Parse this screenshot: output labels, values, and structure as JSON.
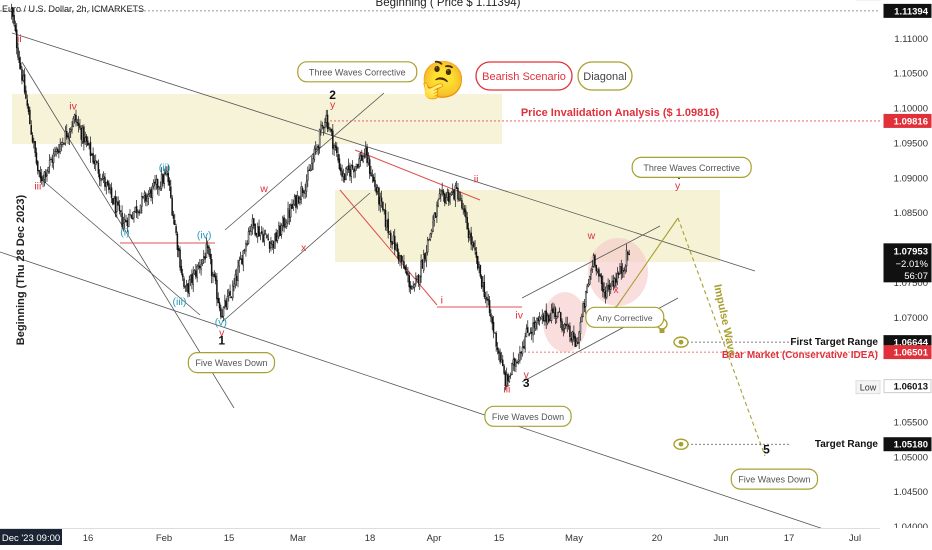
{
  "header": {
    "symbol_line": "Euro / U.S. Dollar, 2h, ICMARKETS"
  },
  "chart_data": {
    "type": "candlestick",
    "title": "Euro / U.S. Dollar, 2h, ICMARKETS",
    "y_axis": {
      "side": "right",
      "ylim": [
        1.0395,
        1.1155
      ],
      "ticks": [
        "1.11000",
        "1.10500",
        "1.10000",
        "1.09500",
        "1.09000",
        "1.08500",
        "1.08000",
        "1.07500",
        "1.07000",
        "1.06500",
        "1.06000",
        "1.05500",
        "1.05000",
        "1.04500",
        "1.04000"
      ],
      "price_badges": [
        {
          "label": "High",
          "value": 1.11394,
          "text": "1.11394"
        },
        {
          "value": 1.09816,
          "text": "1.09816"
        },
        {
          "value": 1.07953,
          "text": "1.07953",
          "change": "−2.01%",
          "countdown": "56:07"
        },
        {
          "value": 1.06644,
          "text": "1.06644"
        },
        {
          "value": 1.06501,
          "text": "1.06501"
        },
        {
          "label": "Low",
          "value": 1.06013,
          "text": "1.06013"
        },
        {
          "value": 1.0518,
          "text": "1.05180"
        }
      ]
    },
    "x_axis": {
      "labels": [
        "Dec '23  09:00",
        "16",
        "Feb",
        "15",
        "Mar",
        "18",
        "Apr",
        "15",
        "May",
        "20",
        "Jun",
        "17",
        "Jul"
      ]
    },
    "series": [
      {
        "type": "price",
        "anchors": [
          [
            0.013,
            1.1139
          ],
          [
            0.02,
            1.1085
          ],
          [
            0.045,
            1.0895
          ],
          [
            0.085,
            1.0985
          ],
          [
            0.14,
            1.0835
          ],
          [
            0.19,
            1.0905
          ],
          [
            0.21,
            1.0735
          ],
          [
            0.235,
            1.0795
          ],
          [
            0.252,
            1.0705
          ],
          [
            0.265,
            1.074
          ],
          [
            0.285,
            1.0835
          ],
          [
            0.31,
            1.0805
          ],
          [
            0.35,
            1.09
          ],
          [
            0.37,
            1.099
          ],
          [
            0.39,
            1.09
          ],
          [
            0.415,
            1.0935
          ],
          [
            0.44,
            1.083
          ],
          [
            0.47,
            1.0735
          ],
          [
            0.5,
            1.087
          ],
          [
            0.52,
            1.088
          ],
          [
            0.55,
            1.074
          ],
          [
            0.575,
            1.0605
          ],
          [
            0.6,
            1.068
          ],
          [
            0.63,
            1.071
          ],
          [
            0.655,
            1.066
          ],
          [
            0.675,
            1.079
          ],
          [
            0.685,
            1.0735
          ],
          [
            0.705,
            1.0765
          ],
          [
            0.715,
            1.0795
          ]
        ],
        "candle_count": 470
      }
    ],
    "horizontal_levels": [
      {
        "value": 1.11394,
        "label": "Beginning ( Price $ 1.11394)"
      },
      {
        "value": 1.09816,
        "label": "Price Invalidation Analysis ($ 1.09816)"
      },
      {
        "value": 1.06644,
        "label": "First Target Range"
      },
      {
        "value": 1.06501,
        "label": "Bear Market (Conservative IDEA)"
      },
      {
        "value": 1.0518,
        "label": "Target Range"
      }
    ],
    "vertical_note": "Beginning (Thu 28 Dec 2023)",
    "elliott_labels": [
      {
        "text": "ii",
        "x": 0.022,
        "y": 1.1095,
        "color": "red"
      },
      {
        "text": "iii",
        "x": 0.043,
        "y": 1.0883,
        "color": "red"
      },
      {
        "text": "iv",
        "x": 0.083,
        "y": 1.0998,
        "color": "red"
      },
      {
        "text": "(ii)",
        "x": 0.187,
        "y": 1.091,
        "color": "teal"
      },
      {
        "text": "(i)",
        "x": 0.142,
        "y": 1.0817,
        "color": "teal"
      },
      {
        "text": "(iii)",
        "x": 0.204,
        "y": 1.0718,
        "color": "teal"
      },
      {
        "text": "(iv)",
        "x": 0.232,
        "y": 1.0813,
        "color": "teal"
      },
      {
        "text": "(v)",
        "x": 0.251,
        "y": 1.0688,
        "color": "teal"
      },
      {
        "text": "v",
        "x": 0.252,
        "y": 1.0673,
        "color": "red"
      },
      {
        "text": "1",
        "x": 0.252,
        "y": 1.0661,
        "color": "black"
      },
      {
        "text": "w",
        "x": 0.3,
        "y": 1.088,
        "color": "red"
      },
      {
        "text": "x",
        "x": 0.345,
        "y": 1.0795,
        "color": "red"
      },
      {
        "text": "2",
        "x": 0.378,
        "y": 1.1013,
        "color": "black"
      },
      {
        "text": "y",
        "x": 0.378,
        "y": 1.1,
        "color": "red"
      },
      {
        "text": "ii",
        "x": 0.541,
        "y": 1.0893,
        "color": "red"
      },
      {
        "text": "i",
        "x": 0.502,
        "y": 1.072,
        "color": "red"
      },
      {
        "text": "iv",
        "x": 0.59,
        "y": 1.0698,
        "color": "red"
      },
      {
        "text": "iii",
        "x": 0.576,
        "y": 1.0592,
        "color": "red"
      },
      {
        "text": "v",
        "x": 0.598,
        "y": 1.0613,
        "color": "red"
      },
      {
        "text": "3",
        "x": 0.598,
        "y": 1.06,
        "color": "black"
      },
      {
        "text": "w",
        "x": 0.672,
        "y": 1.0812,
        "color": "red"
      },
      {
        "text": "x",
        "x": 0.7,
        "y": 1.0735,
        "color": "red"
      },
      {
        "text": "4",
        "x": 0.77,
        "y": 1.0898,
        "color": "black"
      },
      {
        "text": "y",
        "x": 0.77,
        "y": 1.0884,
        "color": "red"
      },
      {
        "text": "5",
        "x": 0.871,
        "y": 1.0505,
        "color": "black"
      }
    ],
    "annotations": [
      {
        "text": "Three Waves Corrective",
        "x": 0.406,
        "y": 1.1052
      },
      {
        "text": "Three Waves Corrective",
        "x": 0.786,
        "y": 1.0915
      },
      {
        "text": "Five Waves Down",
        "x": 0.263,
        "y": 1.0635
      },
      {
        "text": "Five Waves Down",
        "x": 0.6,
        "y": 1.0558
      },
      {
        "text": "Five Waves Down",
        "x": 0.88,
        "y": 1.0468
      },
      {
        "text": "Any Corrective",
        "x": 0.71,
        "y": 1.07
      },
      {
        "text": "Impulse Wave",
        "x": 0.82,
        "y": 1.0695,
        "rotate": 78
      }
    ],
    "legend_boxes": [
      "Bearish Scenario",
      "Diagonal"
    ],
    "emoji": "🤔"
  }
}
